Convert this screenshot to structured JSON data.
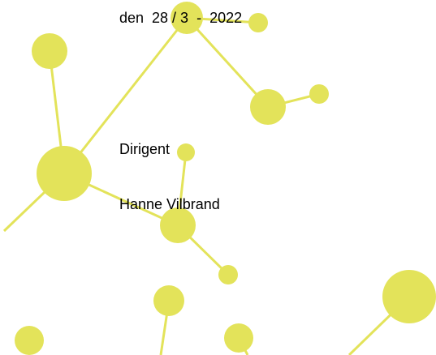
{
  "header": {
    "date": "den  28 / 3  -  2022"
  },
  "role": "Dirigent",
  "name": "Hanne Vilbrand"
}
